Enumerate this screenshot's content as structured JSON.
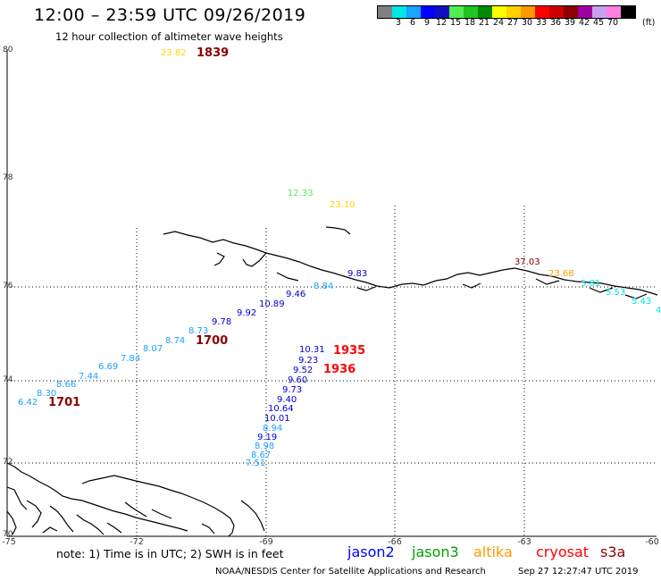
{
  "header": {
    "title": "12:00 – 23:59 UTC 09/26/2019",
    "subtitle": "12 hour collection of altimeter wave heights"
  },
  "legend": {
    "unit": "(ft)",
    "swatches": [
      {
        "color": "#808080",
        "label": ""
      },
      {
        "color": "#00e5e5",
        "label": "3"
      },
      {
        "color": "#1aa3ff",
        "label": "6"
      },
      {
        "color": "#0000ff",
        "label": "9"
      },
      {
        "color": "#1010c0",
        "label": "12"
      },
      {
        "color": "#50ee50",
        "label": "15"
      },
      {
        "color": "#22c422",
        "label": "18"
      },
      {
        "color": "#008a00",
        "label": "21"
      },
      {
        "color": "#ffff00",
        "label": "24"
      },
      {
        "color": "#ffd200",
        "label": "27"
      },
      {
        "color": "#ff9900",
        "label": "30"
      },
      {
        "color": "#ff0000",
        "label": "33"
      },
      {
        "color": "#cc0000",
        "label": "36"
      },
      {
        "color": "#8b0000",
        "label": "39"
      },
      {
        "color": "#a000a0",
        "label": "42"
      },
      {
        "color": "#c8a0f0",
        "label": "45"
      },
      {
        "color": "#ff80e0",
        "label": "70"
      },
      {
        "color": "#000000",
        "label": ""
      }
    ]
  },
  "axes": {
    "lat_labels": [
      "80",
      "78",
      "76",
      "74",
      "72",
      "70"
    ],
    "lon_labels": [
      "-75",
      "-72",
      "-69",
      "-66",
      "-63",
      "-60"
    ]
  },
  "observations": [
    {
      "text": "23.82",
      "color": "#ffd700"
    },
    {
      "text": "12.33",
      "color": "#50ee50"
    },
    {
      "text": "23.10",
      "color": "#ffd200"
    },
    {
      "text": "37.03",
      "color": "#8b0000"
    },
    {
      "text": "23.68",
      "color": "#ff9900"
    },
    {
      "text": "9.83",
      "color": "#0000cc"
    },
    {
      "text": "8.84",
      "color": "#1aa3ff"
    },
    {
      "text": "9.46",
      "color": "#0000cc"
    },
    {
      "text": "10.89",
      "color": "#0000cc"
    },
    {
      "text": "9.92",
      "color": "#0000cc"
    },
    {
      "text": "9.78",
      "color": "#0000cc"
    },
    {
      "text": "8.73",
      "color": "#1aa3ff"
    },
    {
      "text": "8.74",
      "color": "#1aa3ff"
    },
    {
      "text": "8.07",
      "color": "#1aa3ff"
    },
    {
      "text": "7.84",
      "color": "#1aa3ff"
    },
    {
      "text": "6.69",
      "color": "#1aa3ff"
    },
    {
      "text": "7.44",
      "color": "#1aa3ff"
    },
    {
      "text": "8.66",
      "color": "#1aa3ff"
    },
    {
      "text": "8.30",
      "color": "#1aa3ff"
    },
    {
      "text": "6.42",
      "color": "#1aa3ff"
    },
    {
      "text": "5.81",
      "color": "#00e5e5"
    },
    {
      "text": "5.53",
      "color": "#00e5e5"
    },
    {
      "text": "5.43",
      "color": "#00e5e5"
    },
    {
      "text": "4",
      "color": "#00e5e5"
    },
    {
      "text": "10.31",
      "color": "#0000cc"
    },
    {
      "text": "9.23",
      "color": "#0000cc"
    },
    {
      "text": "9.52",
      "color": "#0000cc"
    },
    {
      "text": "9.60",
      "color": "#0000cc"
    },
    {
      "text": "9.73",
      "color": "#0000cc"
    },
    {
      "text": "9.40",
      "color": "#0000cc"
    },
    {
      "text": "10.64",
      "color": "#0000cc"
    },
    {
      "text": "10.01",
      "color": "#0000cc"
    },
    {
      "text": "8.94",
      "color": "#1aa3ff"
    },
    {
      "text": "9.19",
      "color": "#0000cc"
    },
    {
      "text": "8.98",
      "color": "#1aa3ff"
    },
    {
      "text": "8.67",
      "color": "#1aa3ff"
    },
    {
      "text": "7.51",
      "color": "#1aa3ff"
    }
  ],
  "pass_times": [
    {
      "text": "1839",
      "color": "#8b0000"
    },
    {
      "text": "1700",
      "color": "#8b0000"
    },
    {
      "text": "1701",
      "color": "#8b0000"
    },
    {
      "text": "1935",
      "color": "#ff0000"
    },
    {
      "text": "1936",
      "color": "#ff0000"
    }
  ],
  "footer": {
    "note": "note:  1) Time is in UTC;  2) SWH is in feet",
    "satellites": [
      {
        "name": "jason2",
        "color": "#0000ff"
      },
      {
        "name": "jason3",
        "color": "#00a000"
      },
      {
        "name": "altika",
        "color": "#ff9900"
      },
      {
        "name": "cryosat",
        "color": "#ff0000"
      },
      {
        "name": "s3a",
        "color": "#8b0000"
      }
    ],
    "credit": "NOAA/NESDIS Center for Satellite Applications and Research",
    "timestamp": "Sep 27 12:27:47 UTC 2019"
  }
}
